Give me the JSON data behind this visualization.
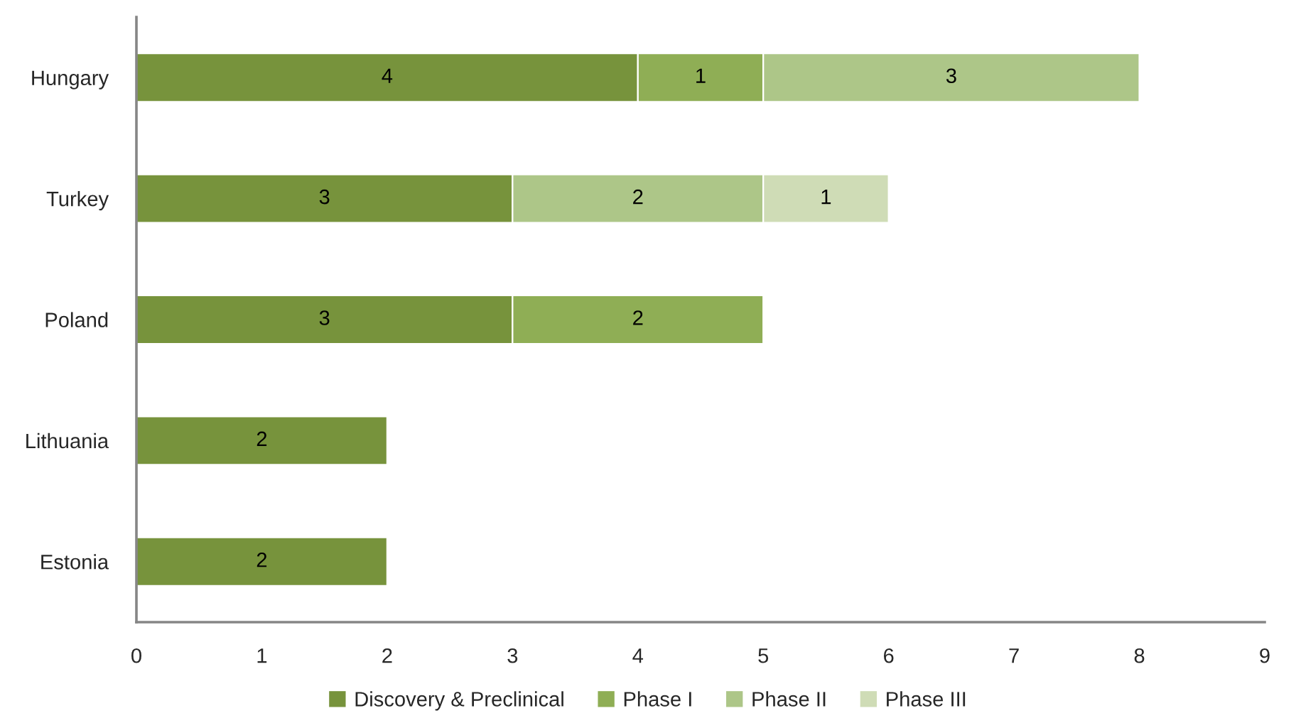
{
  "chart_data": {
    "type": "bar",
    "orientation": "horizontal",
    "stacked": true,
    "categories": [
      "Hungary",
      "Turkey",
      "Poland",
      "Lithuania",
      "Estonia"
    ],
    "series": [
      {
        "name": "Discovery & Preclinical",
        "color": "#77933c",
        "values": [
          4,
          3,
          3,
          2,
          2
        ]
      },
      {
        "name": "Phase I",
        "color": "#8fae55",
        "values": [
          1,
          null,
          2,
          null,
          null
        ]
      },
      {
        "name": "Phase II",
        "color": "#adc688",
        "values": [
          3,
          2,
          null,
          null,
          null
        ]
      },
      {
        "name": "Phase III",
        "color": "#cfdcb6",
        "values": [
          null,
          1,
          null,
          null,
          null
        ]
      }
    ],
    "xlim": [
      0,
      9
    ],
    "xticks": [
      0,
      1,
      2,
      3,
      4,
      5,
      6,
      7,
      8,
      9
    ],
    "data_labels": true,
    "legend": "bottom"
  }
}
